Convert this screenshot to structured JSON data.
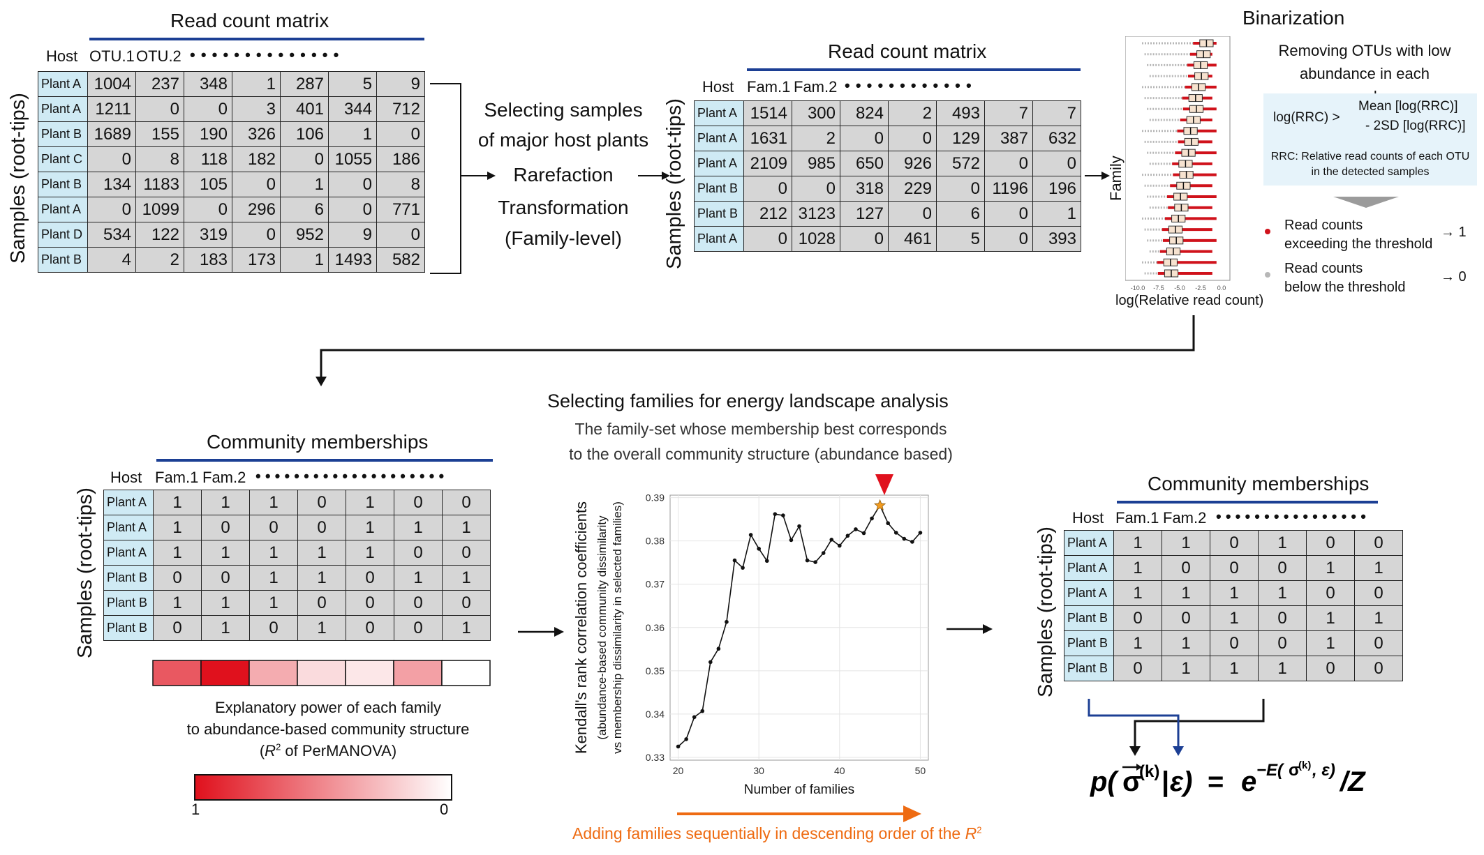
{
  "otu_panel": {
    "title": "Read count matrix",
    "host_label": "Host",
    "col_headers": [
      "OTU.1",
      "OTU.2"
    ],
    "ellipsis": "• • • • • • • • • • • • • •",
    "y_label": "Samples (root-tips)",
    "rows": [
      {
        "host": "Plant A",
        "values": [
          "1004",
          "237",
          "348",
          "1",
          "287",
          "5",
          "9"
        ]
      },
      {
        "host": "Plant A",
        "values": [
          "1211",
          "0",
          "0",
          "3",
          "401",
          "344",
          "712"
        ]
      },
      {
        "host": "Plant B",
        "values": [
          "1689",
          "155",
          "190",
          "326",
          "106",
          "1",
          "0"
        ]
      },
      {
        "host": "Plant C",
        "values": [
          "0",
          "8",
          "118",
          "182",
          "0",
          "1055",
          "186"
        ]
      },
      {
        "host": "Plant B",
        "values": [
          "134",
          "1183",
          "105",
          "0",
          "1",
          "0",
          "8"
        ]
      },
      {
        "host": "Plant A",
        "values": [
          "0",
          "1099",
          "0",
          "296",
          "6",
          "0",
          "771"
        ]
      },
      {
        "host": "Plant D",
        "values": [
          "534",
          "122",
          "319",
          "0",
          "952",
          "9",
          "0"
        ]
      },
      {
        "host": "Plant B",
        "values": [
          "4",
          "2",
          "183",
          "173",
          "1",
          "1493",
          "582"
        ]
      }
    ]
  },
  "processing_steps": {
    "step1": "Selecting samples",
    "step2": "of major host plants",
    "step3": "Rarefaction",
    "step4": "Transformation",
    "step5": "(Family-level)"
  },
  "family_panel": {
    "title": "Read count matrix",
    "host_label": "Host",
    "col_headers": [
      "Fam.1",
      "Fam.2"
    ],
    "ellipsis": "• • • • • • • • • • • •",
    "y_label": "Samples (root-tips)",
    "rows": [
      {
        "host": "Plant A",
        "values": [
          "1514",
          "300",
          "824",
          "2",
          "493",
          "7",
          "7"
        ]
      },
      {
        "host": "Plant A",
        "values": [
          "1631",
          "2",
          "0",
          "0",
          "129",
          "387",
          "632"
        ]
      },
      {
        "host": "Plant A",
        "values": [
          "2109",
          "985",
          "650",
          "926",
          "572",
          "0",
          "0"
        ]
      },
      {
        "host": "Plant B",
        "values": [
          "0",
          "0",
          "318",
          "229",
          "0",
          "1196",
          "196"
        ]
      },
      {
        "host": "Plant B",
        "values": [
          "212",
          "3123",
          "127",
          "0",
          "6",
          "0",
          "1"
        ]
      },
      {
        "host": "Plant A",
        "values": [
          "0",
          "1028",
          "0",
          "461",
          "5",
          "0",
          "393"
        ]
      }
    ]
  },
  "binarization": {
    "title": "Binarization",
    "y_label": "Family",
    "x_label": "log(Relative read count)",
    "x_ticks": [
      "-10.0",
      "-7.5",
      "-5.0",
      "-2.5",
      "0.0"
    ],
    "subtitle_line1": "Removing OTUs with low",
    "subtitle_line2": "abundance in each samples",
    "formula_left": "log(RRC) >",
    "formula_right1": "Mean [log(RRC)]",
    "formula_right2": "- 2SD [log(RRC)]",
    "rrc_note1": "RRC: Relative read counts of each OTU",
    "rrc_note2": "in the detected samples",
    "legend_exceed1": "Read counts",
    "legend_exceed2": "exceeding the threshold",
    "legend_exceed_result": "→ 1",
    "legend_below1": "Read counts",
    "legend_below2": "below the threshold",
    "legend_below_result": "→ 0",
    "colors": {
      "exceed": "#d0121b",
      "below": "#b7b7b7",
      "box_fill": "#f6e2cf",
      "note_bg": "#e6f3fa"
    }
  },
  "membership_left": {
    "title": "Community memberships",
    "host_label": "Host",
    "col_headers": [
      "Fam.1",
      "Fam.2"
    ],
    "ellipsis": "• • • • • • • • • • • • • • • • • • • •",
    "y_label": "Samples (root-tips)",
    "rows": [
      {
        "host": "Plant A",
        "values": [
          "1",
          "1",
          "1",
          "0",
          "1",
          "0",
          "0"
        ]
      },
      {
        "host": "Plant A",
        "values": [
          "1",
          "0",
          "0",
          "0",
          "1",
          "1",
          "1"
        ]
      },
      {
        "host": "Plant A",
        "values": [
          "1",
          "1",
          "1",
          "1",
          "1",
          "0",
          "0"
        ]
      },
      {
        "host": "Plant B",
        "values": [
          "0",
          "0",
          "1",
          "1",
          "0",
          "1",
          "1"
        ]
      },
      {
        "host": "Plant B",
        "values": [
          "1",
          "1",
          "1",
          "0",
          "0",
          "0",
          "0"
        ]
      },
      {
        "host": "Plant B",
        "values": [
          "0",
          "1",
          "0",
          "1",
          "0",
          "0",
          "1"
        ]
      }
    ],
    "r2_strip": [
      0.7,
      1.0,
      0.35,
      0.15,
      0.1,
      0.4,
      0.0
    ],
    "explanatory_line1": "Explanatory power of each family",
    "explanatory_line2": "to abundance-based community structure",
    "explanatory_r2": "R",
    "explanatory_sup": "2",
    "explanatory_suffix": " of PerMANOVA)",
    "explanatory_prefix": "(",
    "scale_max": "1",
    "scale_min": "0",
    "colors": {
      "strong": "#e0111d",
      "weak": "#ffffff"
    }
  },
  "selection": {
    "title": "Selecting families for energy landscape analysis",
    "subtitle1": "The family-set whose membership best corresponds",
    "subtitle2": "to the overall community structure (abundance based)",
    "marker_color": "#e0111d",
    "arrow_label_prefix": "Adding families sequentially in descending order of the ",
    "arrow_label_r": "R",
    "arrow_label_sup": "2",
    "arrow_color": "#ee6b12"
  },
  "chart_data": {
    "type": "line",
    "xlabel": "Number of families",
    "ylabel": "Kendall's rank correlation coefficients",
    "ylabel_sub1": "(abundance-based community dissimilarity",
    "ylabel_sub2": "vs membership dissimilarity in selected families)",
    "xlim": [
      19,
      51
    ],
    "ylim": [
      0.33,
      0.39
    ],
    "x_ticks": [
      20,
      30,
      40,
      50
    ],
    "y_ticks": [
      0.33,
      0.34,
      0.35,
      0.36,
      0.37,
      0.38,
      0.39
    ],
    "grid": true,
    "x": [
      20,
      21,
      22,
      23,
      24,
      25,
      26,
      27,
      28,
      29,
      30,
      31,
      32,
      33,
      34,
      35,
      36,
      37,
      38,
      39,
      40,
      41,
      42,
      43,
      44,
      45,
      46,
      47,
      48,
      49,
      50
    ],
    "y": [
      0.3325,
      0.3342,
      0.3393,
      0.3407,
      0.352,
      0.3551,
      0.3613,
      0.3755,
      0.3738,
      0.3814,
      0.3782,
      0.3754,
      0.3862,
      0.3859,
      0.3802,
      0.3834,
      0.3755,
      0.3751,
      0.3772,
      0.3803,
      0.3789,
      0.3812,
      0.3827,
      0.3818,
      0.3852,
      0.3882,
      0.3841,
      0.3819,
      0.3805,
      0.3798,
      0.3819
    ],
    "highlight_x": 45,
    "highlight_color": "#f39b1e"
  },
  "membership_right": {
    "title": "Community memberships",
    "host_label": "Host",
    "col_headers": [
      "Fam.1",
      "Fam.2"
    ],
    "ellipsis": "• • • • • • • • • • • • • • • •",
    "y_label": "Samples (root-tips)",
    "rows": [
      {
        "host": "Plant A",
        "values": [
          "1",
          "1",
          "0",
          "1",
          "0",
          "0"
        ]
      },
      {
        "host": "Plant A",
        "values": [
          "1",
          "0",
          "0",
          "0",
          "1",
          "1"
        ]
      },
      {
        "host": "Plant A",
        "values": [
          "1",
          "1",
          "1",
          "1",
          "0",
          "0"
        ]
      },
      {
        "host": "Plant B",
        "values": [
          "0",
          "0",
          "1",
          "0",
          "1",
          "1"
        ]
      },
      {
        "host": "Plant B",
        "values": [
          "1",
          "1",
          "0",
          "0",
          "1",
          "0"
        ]
      },
      {
        "host": "Plant B",
        "values": [
          "0",
          "1",
          "1",
          "1",
          "0",
          "0"
        ]
      }
    ]
  }
}
